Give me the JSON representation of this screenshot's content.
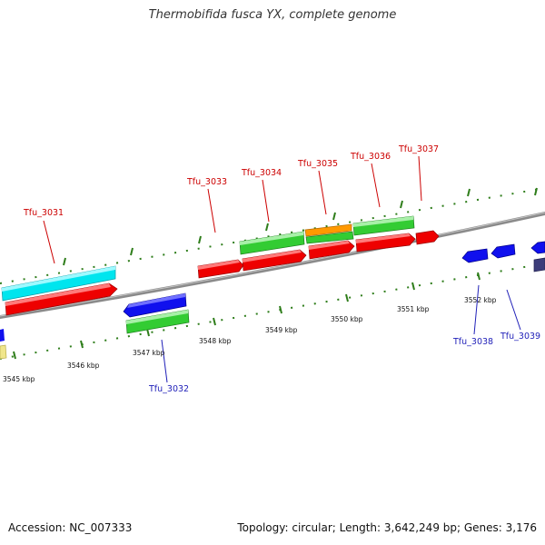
{
  "title": "Thermobifida fusca YX, complete genome",
  "accession": "Accession: NC_007333",
  "summary": "Topology: circular; Length: 3,642,249 bp; Genes: 3,176",
  "colors": {
    "backbone": "#8a8a8a",
    "label_forward": "#cc0000",
    "label_reverse": "#1f1fb8",
    "tick": "#2e7d1a"
  },
  "scale_labels": [
    "3545 kbp",
    "3546 kbp",
    "3547 kbp",
    "3548 kbp",
    "3549 kbp",
    "3550 kbp",
    "3551 kbp",
    "3552 kbp"
  ],
  "gene_labels_top": [
    "Tfu_3031",
    "Tfu_3033",
    "Tfu_3034",
    "Tfu_3035",
    "Tfu_3036",
    "Tfu_3037"
  ],
  "gene_labels_bottom": [
    "Tfu_3032",
    "Tfu_3038",
    "Tfu_3039"
  ]
}
